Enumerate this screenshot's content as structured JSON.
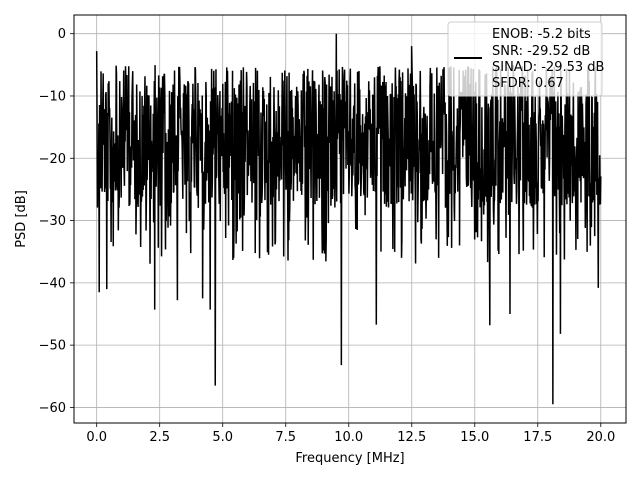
{
  "chart_data": {
    "type": "line",
    "xlabel": "Frequency [MHz]",
    "ylabel": "PSD [dB]",
    "xlim": [
      -0.9,
      21.0
    ],
    "ylim": [
      -62.5,
      3.0
    ],
    "grid": true,
    "legend_placement": "top-right",
    "x_ticks": [
      0.0,
      2.5,
      5.0,
      7.5,
      10.0,
      12.5,
      15.0,
      17.5,
      20.0
    ],
    "x_tick_labels": [
      "0.0",
      "2.5",
      "5.0",
      "7.5",
      "10.0",
      "12.5",
      "15.0",
      "17.5",
      "20.0"
    ],
    "y_ticks": [
      0,
      -10,
      -20,
      -30,
      -40,
      -50,
      -60
    ],
    "y_tick_labels": [
      "0",
      "−10",
      "−20",
      "−30",
      "−40",
      "−50",
      "−60"
    ],
    "legend_lines": [
      "ENOB: -5.2 bits",
      "SNR: -29.52 dB",
      "SINAD: -29.53 dB",
      "SFDR: 0.67"
    ],
    "series": [
      {
        "color": "#000000",
        "band_top": -6.5,
        "band_bottom": -29.0,
        "x_start": 0.0,
        "x_end": 20.0,
        "spikes": [
          {
            "x": 0.0,
            "y": -2.8
          },
          {
            "x": 0.1,
            "y": -41.5
          },
          {
            "x": 0.4,
            "y": -41.0
          },
          {
            "x": 2.3,
            "y": -44.3
          },
          {
            "x": 3.2,
            "y": -42.8
          },
          {
            "x": 4.2,
            "y": -42.5
          },
          {
            "x": 4.5,
            "y": -44.3
          },
          {
            "x": 4.7,
            "y": -56.5
          },
          {
            "x": 9.5,
            "y": 0.0
          },
          {
            "x": 9.7,
            "y": -53.2
          },
          {
            "x": 11.1,
            "y": -46.7
          },
          {
            "x": 12.5,
            "y": -2.0
          },
          {
            "x": 15.6,
            "y": -46.8
          },
          {
            "x": 16.4,
            "y": -45.0
          },
          {
            "x": 18.1,
            "y": -59.5
          },
          {
            "x": 18.4,
            "y": -48.2
          },
          {
            "x": 19.9,
            "y": -40.8
          }
        ]
      }
    ]
  }
}
